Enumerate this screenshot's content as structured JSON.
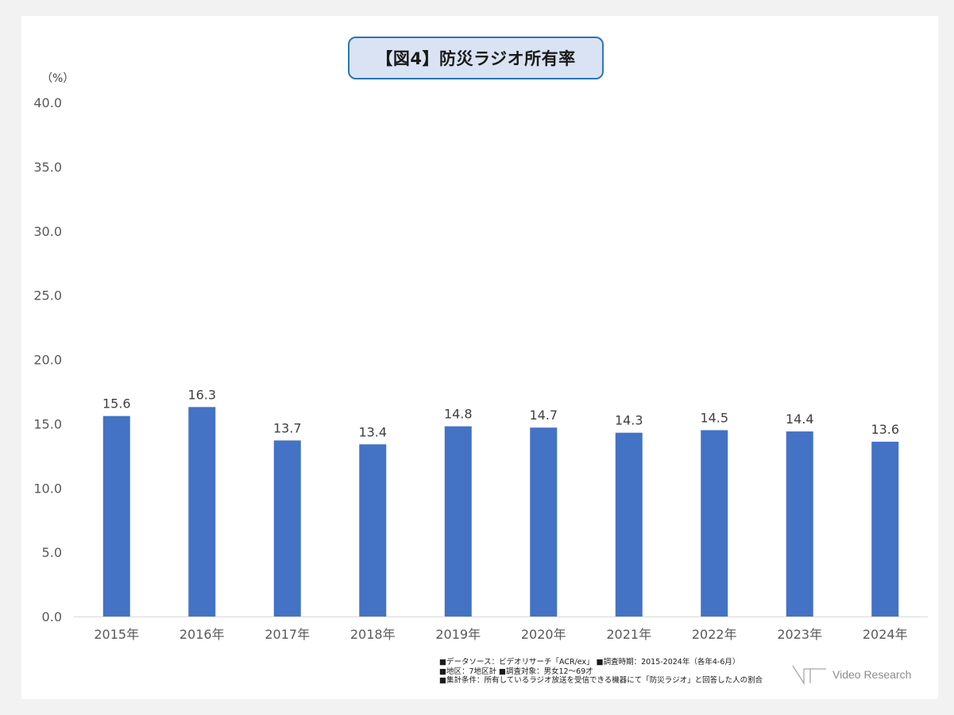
{
  "unit_label": "（%）",
  "chart_data": {
    "type": "bar",
    "title": "【図4】防災ラジオ所有率",
    "xlabel": "",
    "ylabel": "",
    "categories": [
      "2015年",
      "2016年",
      "2017年",
      "2018年",
      "2019年",
      "2020年",
      "2021年",
      "2022年",
      "2023年",
      "2024年"
    ],
    "series": [
      {
        "values": [
          15.6,
          16.3,
          13.7,
          13.4,
          14.8,
          14.7,
          14.3,
          14.5,
          14.4,
          13.6
        ]
      }
    ],
    "ylim": [
      0,
      40
    ],
    "yticks": [
      "0.0",
      "5.0",
      "10.0",
      "15.0",
      "20.0",
      "25.0",
      "30.0",
      "35.0",
      "40.0"
    ],
    "grid": false,
    "legend": "none",
    "bar_color": "#4472c4"
  },
  "footnotes": [
    "■データソース：ビデオリサーチ「ACR/ex」 ■調査時期：2015-2024年（各年4-6月）",
    "■地区：7地区計 ■調査対象：男女12～69才",
    "■集計条件：所有しているラジオ放送を受信できる機器にて「防災ラジオ」と回答した人の割合"
  ],
  "logo": {
    "text": "Video Research"
  }
}
